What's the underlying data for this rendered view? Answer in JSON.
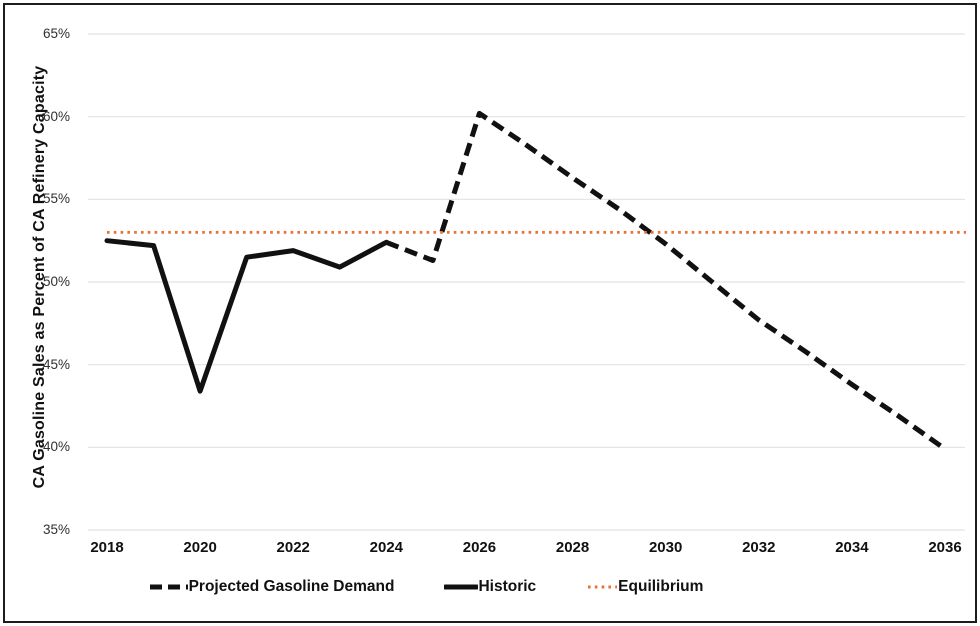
{
  "accent_colors": {
    "line_black": "#111111",
    "equilibrium_orange": "#E97132",
    "gridline_gray": "#e2e2e2",
    "frame_black": "#1d1d1d"
  },
  "axes": {
    "y_title": "CA Gasoline Sales as Percent of CA Refinery Capacity",
    "yticks": [
      {
        "label": "65%",
        "value": 65
      },
      {
        "label": "60%",
        "value": 60
      },
      {
        "label": "55%",
        "value": 55
      },
      {
        "label": "50%",
        "value": 50
      },
      {
        "label": "45%",
        "value": 45
      },
      {
        "label": "40%",
        "value": 40
      },
      {
        "label": "35%",
        "value": 35
      }
    ],
    "xticks": [
      {
        "label": "2018",
        "value": 2018
      },
      {
        "label": "2020",
        "value": 2020
      },
      {
        "label": "2022",
        "value": 2022
      },
      {
        "label": "2024",
        "value": 2024
      },
      {
        "label": "2026",
        "value": 2026
      },
      {
        "label": "2028",
        "value": 2028
      },
      {
        "label": "2030",
        "value": 2030
      },
      {
        "label": "2032",
        "value": 2032
      },
      {
        "label": "2034",
        "value": 2034
      },
      {
        "label": "2036",
        "value": 2036
      }
    ]
  },
  "legend": {
    "items": [
      {
        "label": "Projected Gasoline Demand",
        "style": "dashed",
        "color": "#111111"
      },
      {
        "label": "Historic",
        "style": "solid",
        "color": "#111111"
      },
      {
        "label": "Equilibrium",
        "style": "dotted",
        "color": "#E97132"
      }
    ]
  },
  "chart_data": {
    "type": "line",
    "title": "",
    "xlabel": "",
    "ylabel": "CA Gasoline Sales as Percent of CA Refinery Capacity",
    "ylim": [
      35,
      65
    ],
    "xlim": [
      2017.6,
      2036.45
    ],
    "ytick_step": 5,
    "grid": "horizontal",
    "legend_position": "bottom",
    "series": [
      {
        "name": "Historic",
        "style": "solid",
        "color": "#111111",
        "x": [
          2018,
          2019,
          2020,
          2021,
          2022,
          2023,
          2024
        ],
        "values": [
          52.5,
          52.2,
          43.4,
          51.5,
          51.9,
          50.9,
          52.4
        ]
      },
      {
        "name": "Projected Gasoline Demand",
        "style": "dashed",
        "color": "#111111",
        "x": [
          2024,
          2025,
          2026,
          2027,
          2028,
          2029,
          2030,
          2031,
          2032,
          2033,
          2034,
          2035,
          2036
        ],
        "values": [
          52.4,
          51.3,
          60.2,
          58.3,
          56.3,
          54.4,
          52.3,
          50.0,
          47.7,
          45.8,
          43.8,
          41.9,
          39.9
        ]
      },
      {
        "name": "Equilibrium",
        "style": "dotted",
        "color": "#E97132",
        "x": [
          2018,
          2036.45
        ],
        "values": [
          53.0,
          53.0
        ]
      }
    ]
  }
}
